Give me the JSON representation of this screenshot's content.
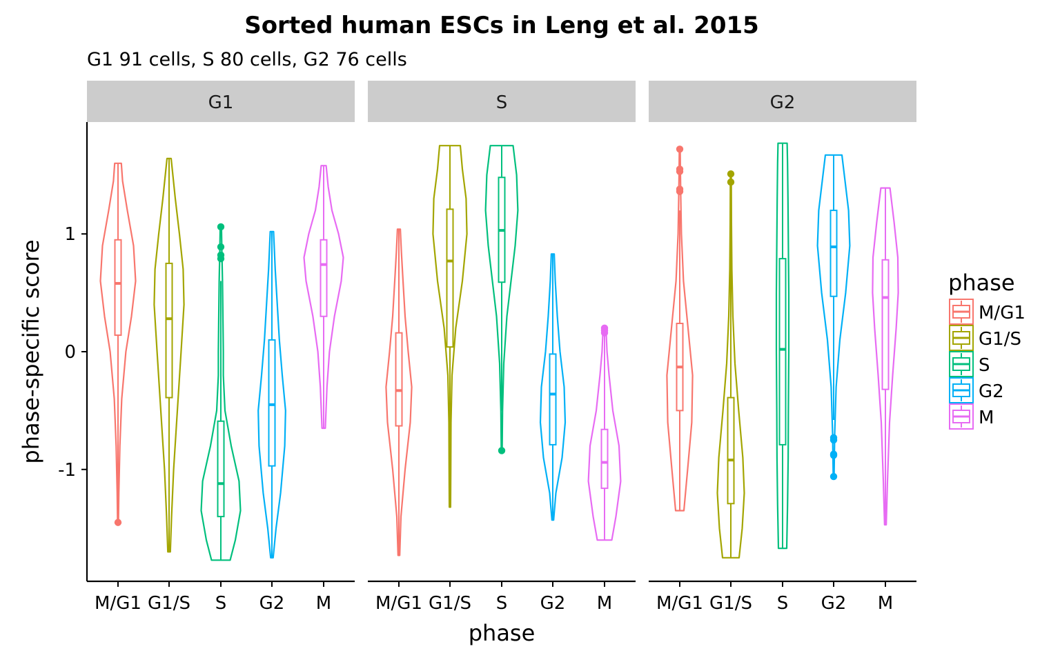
{
  "chart_data": {
    "type": "violin",
    "title": "Sorted human ESCs in Leng et al. 2015",
    "subtitle": "G1 91 cells, S 80 cells, G2 76 cells",
    "xlabel": "phase",
    "ylabel": "phase-specific score",
    "ylim": [
      -1.95,
      1.95
    ],
    "yticks": [
      1,
      0,
      -1
    ],
    "ytick_labels": [
      "1",
      "0",
      "-1"
    ],
    "categories": [
      "M/G1",
      "G1/S",
      "S",
      "G2",
      "M"
    ],
    "colors": {
      "M/G1": "#F8766D",
      "G1/S": "#A3A500",
      "S": "#00BF7D",
      "G2": "#00B0F6",
      "M": "#E76BF3"
    },
    "legend": {
      "title": "phase",
      "position": "right",
      "entries": [
        "M/G1",
        "G1/S",
        "S",
        "G2",
        "M"
      ]
    },
    "panels": [
      {
        "label": "G1",
        "violins": [
          {
            "phase": "M/G1",
            "min": -1.45,
            "max": 1.6,
            "q1": 0.14,
            "median": 0.58,
            "q3": 0.95,
            "wlo": -1.45,
            "whi": 1.6,
            "outliers": [
              -1.45
            ],
            "density": [
              [
                -1.45,
                0.02
              ],
              [
                -1.2,
                0.04
              ],
              [
                -0.8,
                0.09
              ],
              [
                -0.4,
                0.18
              ],
              [
                0.0,
                0.38
              ],
              [
                0.3,
                0.65
              ],
              [
                0.6,
                0.85
              ],
              [
                0.9,
                0.75
              ],
              [
                1.2,
                0.45
              ],
              [
                1.45,
                0.22
              ],
              [
                1.6,
                0.16
              ]
            ]
          },
          {
            "phase": "G1/S",
            "min": -1.7,
            "max": 1.64,
            "q1": -0.39,
            "median": 0.28,
            "q3": 0.75,
            "wlo": -1.7,
            "whi": 1.64,
            "outliers": [],
            "density": [
              [
                -1.7,
                0.06
              ],
              [
                -1.4,
                0.12
              ],
              [
                -1.0,
                0.22
              ],
              [
                -0.5,
                0.4
              ],
              [
                0.0,
                0.58
              ],
              [
                0.4,
                0.72
              ],
              [
                0.7,
                0.68
              ],
              [
                1.0,
                0.5
              ],
              [
                1.3,
                0.3
              ],
              [
                1.64,
                0.1
              ]
            ]
          },
          {
            "phase": "S",
            "min": -1.77,
            "max": 1.06,
            "q1": -1.4,
            "median": -1.12,
            "q3": -0.59,
            "wlo": -1.77,
            "whi": 0.6,
            "outliers": [
              0.79,
              0.82,
              0.89,
              1.06
            ],
            "density": [
              [
                -1.77,
                0.45
              ],
              [
                -1.6,
                0.7
              ],
              [
                -1.35,
                0.95
              ],
              [
                -1.1,
                0.88
              ],
              [
                -0.8,
                0.5
              ],
              [
                -0.5,
                0.2
              ],
              [
                -0.2,
                0.12
              ],
              [
                0.0,
                0.12
              ],
              [
                0.3,
                0.1
              ],
              [
                0.6,
                0.08
              ],
              [
                0.85,
                0.05
              ],
              [
                1.06,
                0.03
              ]
            ]
          },
          {
            "phase": "G2",
            "min": -1.75,
            "max": 1.02,
            "q1": -0.97,
            "median": -0.45,
            "q3": 0.1,
            "wlo": -1.75,
            "whi": 1.02,
            "outliers": [],
            "density": [
              [
                -1.75,
                0.06
              ],
              [
                -1.5,
                0.2
              ],
              [
                -1.2,
                0.42
              ],
              [
                -0.8,
                0.62
              ],
              [
                -0.5,
                0.66
              ],
              [
                -0.2,
                0.5
              ],
              [
                0.1,
                0.36
              ],
              [
                0.4,
                0.26
              ],
              [
                0.7,
                0.16
              ],
              [
                1.02,
                0.08
              ]
            ]
          },
          {
            "phase": "M",
            "min": -0.65,
            "max": 1.58,
            "q1": 0.3,
            "median": 0.74,
            "q3": 0.95,
            "wlo": -0.65,
            "whi": 1.58,
            "outliers": [],
            "density": [
              [
                -0.65,
                0.08
              ],
              [
                -0.3,
                0.16
              ],
              [
                0.0,
                0.28
              ],
              [
                0.3,
                0.52
              ],
              [
                0.6,
                0.85
              ],
              [
                0.8,
                0.95
              ],
              [
                1.0,
                0.72
              ],
              [
                1.2,
                0.4
              ],
              [
                1.4,
                0.22
              ],
              [
                1.58,
                0.12
              ]
            ]
          }
        ]
      },
      {
        "label": "S",
        "violins": [
          {
            "phase": "M/G1",
            "min": -1.73,
            "max": 1.04,
            "q1": -0.63,
            "median": -0.33,
            "q3": 0.16,
            "wlo": -1.73,
            "whi": 1.04,
            "outliers": [],
            "density": [
              [
                -1.73,
                0.04
              ],
              [
                -1.4,
                0.1
              ],
              [
                -1.0,
                0.3
              ],
              [
                -0.6,
                0.55
              ],
              [
                -0.3,
                0.62
              ],
              [
                0.0,
                0.45
              ],
              [
                0.3,
                0.3
              ],
              [
                0.6,
                0.2
              ],
              [
                0.85,
                0.12
              ],
              [
                1.04,
                0.07
              ]
            ]
          },
          {
            "phase": "G1/S",
            "min": -1.32,
            "max": 1.75,
            "q1": 0.04,
            "median": 0.77,
            "q3": 1.21,
            "wlo": -1.32,
            "whi": 1.75,
            "outliers": [],
            "density": [
              [
                -1.32,
                0.03
              ],
              [
                -1.0,
                0.04
              ],
              [
                -0.6,
                0.05
              ],
              [
                -0.2,
                0.1
              ],
              [
                0.2,
                0.28
              ],
              [
                0.6,
                0.6
              ],
              [
                1.0,
                0.82
              ],
              [
                1.3,
                0.78
              ],
              [
                1.55,
                0.6
              ],
              [
                1.75,
                0.5
              ]
            ]
          },
          {
            "phase": "S",
            "min": -0.84,
            "max": 1.75,
            "q1": 0.59,
            "median": 1.03,
            "q3": 1.48,
            "wlo": -0.5,
            "whi": 1.75,
            "outliers": [
              -0.84
            ],
            "density": [
              [
                -0.84,
                0.02
              ],
              [
                -0.5,
                0.04
              ],
              [
                -0.1,
                0.1
              ],
              [
                0.3,
                0.25
              ],
              [
                0.6,
                0.45
              ],
              [
                0.9,
                0.65
              ],
              [
                1.2,
                0.78
              ],
              [
                1.5,
                0.72
              ],
              [
                1.75,
                0.55
              ]
            ]
          },
          {
            "phase": "G2",
            "min": -1.43,
            "max": 0.83,
            "q1": -0.79,
            "median": -0.36,
            "q3": -0.02,
            "wlo": -1.43,
            "whi": 0.83,
            "outliers": [],
            "density": [
              [
                -1.43,
                0.04
              ],
              [
                -1.2,
                0.15
              ],
              [
                -0.9,
                0.45
              ],
              [
                -0.6,
                0.6
              ],
              [
                -0.3,
                0.55
              ],
              [
                0.0,
                0.35
              ],
              [
                0.3,
                0.22
              ],
              [
                0.6,
                0.12
              ],
              [
                0.83,
                0.07
              ]
            ]
          },
          {
            "phase": "M",
            "min": -1.6,
            "max": 0.2,
            "q1": -1.16,
            "median": -0.94,
            "q3": -0.66,
            "wlo": -1.6,
            "whi": 0.2,
            "outliers": [
              0.16,
              0.18,
              0.2
            ],
            "density": [
              [
                -1.6,
                0.35
              ],
              [
                -1.4,
                0.55
              ],
              [
                -1.1,
                0.78
              ],
              [
                -0.8,
                0.7
              ],
              [
                -0.5,
                0.4
              ],
              [
                -0.2,
                0.22
              ],
              [
                0.0,
                0.12
              ],
              [
                0.2,
                0.07
              ]
            ]
          }
        ]
      },
      {
        "label": "G2",
        "violins": [
          {
            "phase": "M/G1",
            "min": -1.35,
            "max": 1.72,
            "q1": -0.5,
            "median": -0.13,
            "q3": 0.24,
            "wlo": -1.35,
            "whi": 1.2,
            "outliers": [
              1.36,
              1.38,
              1.53,
              1.55,
              1.72
            ],
            "density": [
              [
                -1.35,
                0.2
              ],
              [
                -1.0,
                0.38
              ],
              [
                -0.6,
                0.58
              ],
              [
                -0.2,
                0.62
              ],
              [
                0.2,
                0.4
              ],
              [
                0.6,
                0.18
              ],
              [
                1.0,
                0.08
              ],
              [
                1.3,
                0.05
              ],
              [
                1.55,
                0.03
              ],
              [
                1.72,
                0.02
              ]
            ]
          },
          {
            "phase": "G1/S",
            "min": -1.75,
            "max": 1.51,
            "q1": -1.29,
            "median": -0.92,
            "q3": -0.39,
            "wlo": -1.75,
            "whi": 1.4,
            "outliers": [
              1.44,
              1.51
            ],
            "density": [
              [
                -1.75,
                0.4
              ],
              [
                -1.5,
                0.55
              ],
              [
                -1.2,
                0.65
              ],
              [
                -0.9,
                0.58
              ],
              [
                -0.5,
                0.38
              ],
              [
                -0.1,
                0.2
              ],
              [
                0.3,
                0.1
              ],
              [
                0.7,
                0.05
              ],
              [
                1.1,
                0.03
              ],
              [
                1.51,
                0.02
              ]
            ]
          },
          {
            "phase": "S",
            "min": -1.67,
            "max": 1.77,
            "q1": -0.79,
            "median": 0.02,
            "q3": 0.79,
            "wlo": -1.67,
            "whi": 1.77,
            "outliers": [],
            "density": [
              [
                -1.67,
                0.2
              ],
              [
                -1.3,
                0.24
              ],
              [
                -0.9,
                0.27
              ],
              [
                -0.5,
                0.28
              ],
              [
                0.0,
                0.3
              ],
              [
                0.5,
                0.3
              ],
              [
                0.9,
                0.28
              ],
              [
                1.3,
                0.26
              ],
              [
                1.6,
                0.24
              ],
              [
                1.77,
                0.22
              ]
            ]
          },
          {
            "phase": "G2",
            "min": -1.06,
            "max": 1.67,
            "q1": 0.47,
            "median": 0.89,
            "q3": 1.2,
            "wlo": -0.58,
            "whi": 1.67,
            "outliers": [
              -0.73,
              -0.75,
              -0.87,
              -0.88,
              -1.06
            ],
            "density": [
              [
                -1.06,
                0.02
              ],
              [
                -0.7,
                0.05
              ],
              [
                -0.3,
                0.12
              ],
              [
                0.1,
                0.3
              ],
              [
                0.5,
                0.58
              ],
              [
                0.9,
                0.78
              ],
              [
                1.2,
                0.72
              ],
              [
                1.45,
                0.55
              ],
              [
                1.67,
                0.4
              ]
            ]
          },
          {
            "phase": "M",
            "min": -1.47,
            "max": 1.39,
            "q1": -0.32,
            "median": 0.46,
            "q3": 0.78,
            "wlo": -1.47,
            "whi": 1.39,
            "outliers": [],
            "density": [
              [
                -1.47,
                0.04
              ],
              [
                -1.1,
                0.1
              ],
              [
                -0.6,
                0.2
              ],
              [
                -0.2,
                0.35
              ],
              [
                0.2,
                0.52
              ],
              [
                0.5,
                0.62
              ],
              [
                0.8,
                0.6
              ],
              [
                1.1,
                0.42
              ],
              [
                1.39,
                0.22
              ]
            ]
          }
        ]
      }
    ]
  }
}
